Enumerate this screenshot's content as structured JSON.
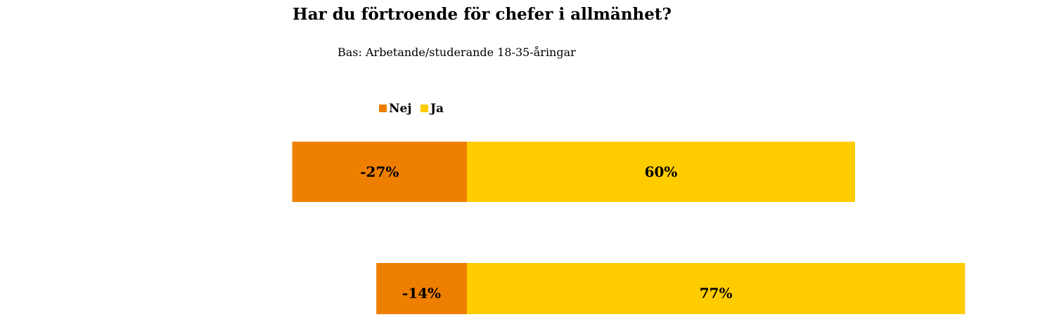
{
  "chart_data": {
    "type": "bar",
    "orientation": "horizontal",
    "stacked": "diverging",
    "title": "Har du förtroende för chefer i allmänhet?",
    "subtitle": "Bas: Arbetande/studerande 18-35-åringar",
    "xlabel": "",
    "ylabel": "",
    "categories": [
      "",
      ""
    ],
    "xlim": [
      -27,
      77
    ],
    "grid": false,
    "legend_position": "top-left",
    "legend": [
      {
        "label": "Nej",
        "color": "#EF7F00"
      },
      {
        "label": "Ja",
        "color": "#FFCC00"
      }
    ],
    "series": [
      {
        "name": "Nej",
        "color": "#EF7F00",
        "values": [
          -27,
          -14
        ],
        "labels": [
          "-27%",
          "-14%"
        ]
      },
      {
        "name": "Ja",
        "color": "#FFCC00",
        "values": [
          60,
          77
        ],
        "labels": [
          "60%",
          "77%"
        ]
      }
    ]
  }
}
